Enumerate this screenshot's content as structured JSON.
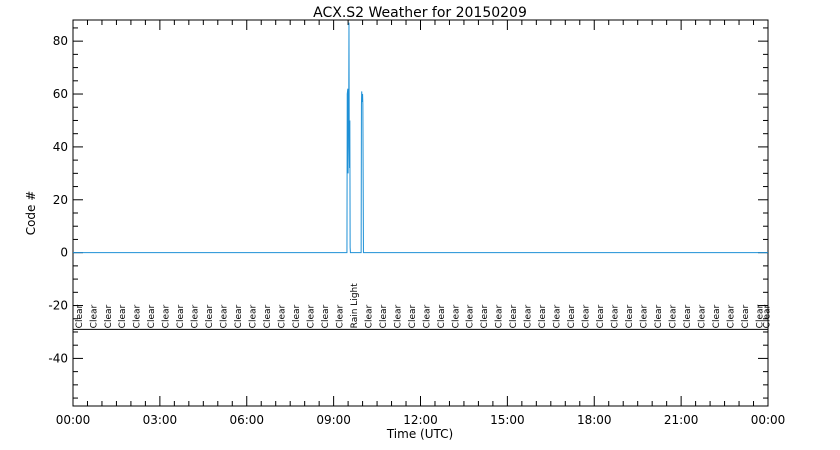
{
  "chart_data": {
    "type": "line",
    "title": "ACX.S2 Weather for 20150209",
    "xlabel": "Time (UTC)",
    "ylabel": "Code #",
    "xlim": [
      0,
      24
    ],
    "ylim": [
      -58,
      88
    ],
    "x_ticks": [
      {
        "value": 0,
        "label": "00:00"
      },
      {
        "value": 3,
        "label": "03:00"
      },
      {
        "value": 6,
        "label": "06:00"
      },
      {
        "value": 9,
        "label": "09:00"
      },
      {
        "value": 12,
        "label": "12:00"
      },
      {
        "value": 15,
        "label": "15:00"
      },
      {
        "value": 18,
        "label": "18:00"
      },
      {
        "value": 21,
        "label": "21:00"
      },
      {
        "value": 24,
        "label": "00:00"
      }
    ],
    "y_ticks": [
      -40,
      -20,
      0,
      20,
      40,
      60,
      80
    ],
    "reference_line_y": -29,
    "series": [
      {
        "color": "#1e90d6",
        "x": [
          0,
          9.46,
          9.47,
          9.49,
          9.5,
          9.51,
          9.52,
          9.53,
          9.54,
          9.55,
          9.56,
          9.57,
          9.58,
          9.6,
          9.95,
          9.96,
          9.97,
          9.98,
          9.99,
          10.0,
          10.01,
          10.02,
          10.03,
          10.05,
          24
        ],
        "y": [
          0,
          0,
          60,
          62,
          30,
          62,
          45,
          87,
          40,
          32,
          50,
          2,
          0,
          0,
          0,
          56,
          61,
          59,
          57,
          60,
          56,
          28,
          0,
          0,
          0
        ]
      }
    ],
    "conditions": [
      {
        "x": 0.2,
        "label": "Clear"
      },
      {
        "x": 0.7,
        "label": "Clear"
      },
      {
        "x": 1.2,
        "label": "Clear"
      },
      {
        "x": 1.7,
        "label": "Clear"
      },
      {
        "x": 2.2,
        "label": "Clear"
      },
      {
        "x": 2.7,
        "label": "Clear"
      },
      {
        "x": 3.2,
        "label": "Clear"
      },
      {
        "x": 3.7,
        "label": "Clear"
      },
      {
        "x": 4.2,
        "label": "Clear"
      },
      {
        "x": 4.7,
        "label": "Clear"
      },
      {
        "x": 5.2,
        "label": "Clear"
      },
      {
        "x": 5.7,
        "label": "Clear"
      },
      {
        "x": 6.2,
        "label": "Clear"
      },
      {
        "x": 6.7,
        "label": "Clear"
      },
      {
        "x": 7.2,
        "label": "Clear"
      },
      {
        "x": 7.7,
        "label": "Clear"
      },
      {
        "x": 8.2,
        "label": "Clear"
      },
      {
        "x": 8.7,
        "label": "Clear"
      },
      {
        "x": 9.2,
        "label": "Clear"
      },
      {
        "x": 9.7,
        "label": "Rain Light"
      },
      {
        "x": 10.2,
        "label": "Clear"
      },
      {
        "x": 10.7,
        "label": "Clear"
      },
      {
        "x": 11.2,
        "label": "Clear"
      },
      {
        "x": 11.7,
        "label": "Clear"
      },
      {
        "x": 12.2,
        "label": "Clear"
      },
      {
        "x": 12.7,
        "label": "Clear"
      },
      {
        "x": 13.2,
        "label": "Clear"
      },
      {
        "x": 13.7,
        "label": "Clear"
      },
      {
        "x": 14.2,
        "label": "Clear"
      },
      {
        "x": 14.7,
        "label": "Clear"
      },
      {
        "x": 15.2,
        "label": "Clear"
      },
      {
        "x": 15.7,
        "label": "Clear"
      },
      {
        "x": 16.2,
        "label": "Clear"
      },
      {
        "x": 16.7,
        "label": "Clear"
      },
      {
        "x": 17.2,
        "label": "Clear"
      },
      {
        "x": 17.7,
        "label": "Clear"
      },
      {
        "x": 18.2,
        "label": "Clear"
      },
      {
        "x": 18.7,
        "label": "Clear"
      },
      {
        "x": 19.2,
        "label": "Clear"
      },
      {
        "x": 19.7,
        "label": "Clear"
      },
      {
        "x": 20.2,
        "label": "Clear"
      },
      {
        "x": 20.7,
        "label": "Clear"
      },
      {
        "x": 21.2,
        "label": "Clear"
      },
      {
        "x": 21.7,
        "label": "Clear"
      },
      {
        "x": 22.2,
        "label": "Clear"
      },
      {
        "x": 22.7,
        "label": "Clear"
      },
      {
        "x": 23.2,
        "label": "Clear"
      },
      {
        "x": 23.7,
        "label": "Clear"
      },
      {
        "x": 23.95,
        "label": "Clear"
      }
    ]
  }
}
